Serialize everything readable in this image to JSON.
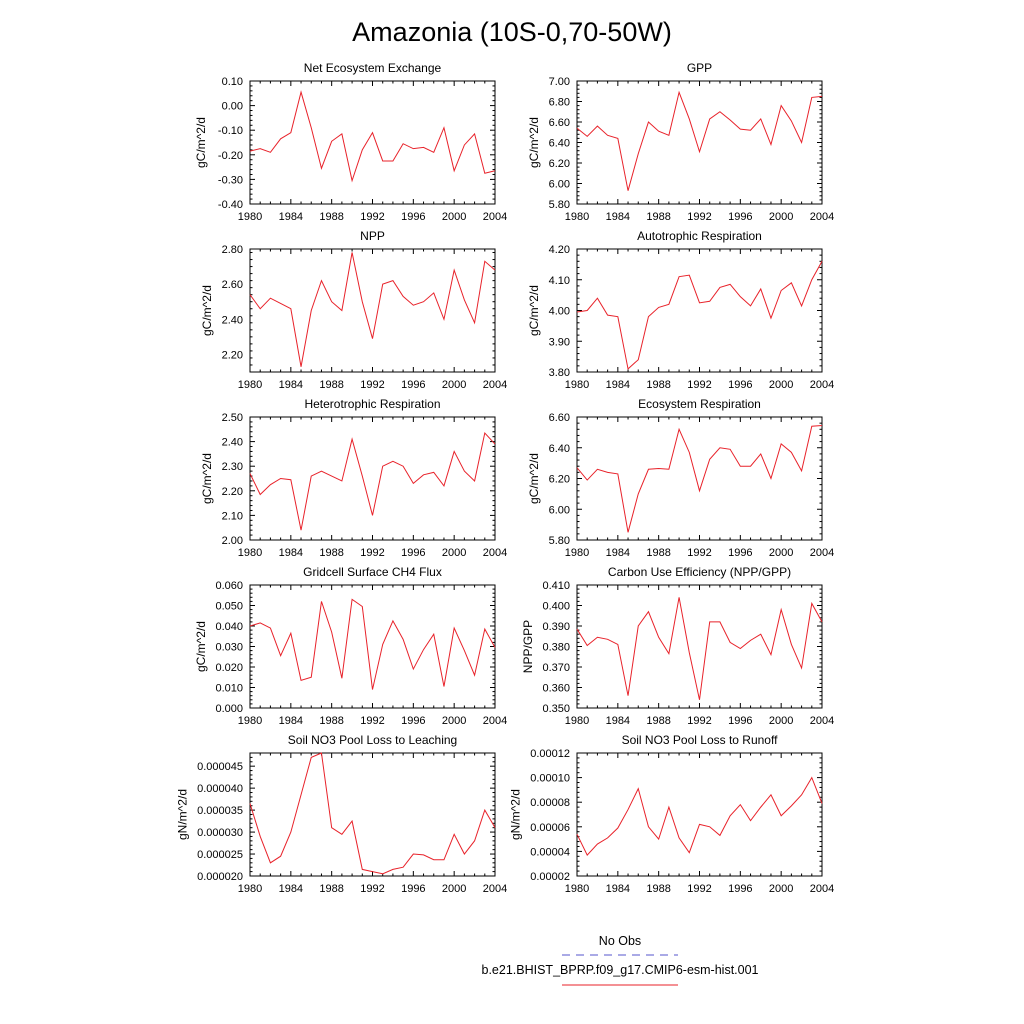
{
  "figure": {
    "title": "Amazonia (10S-0,70-50W)"
  },
  "legend": {
    "entries": [
      {
        "label": "No Obs",
        "color": "#5555cc",
        "dashed": true
      },
      {
        "label": "b.e21.BHIST_BPRP.f09_g17.CMIP6-esm-hist.001",
        "color": "#e8222a",
        "dashed": false
      }
    ]
  },
  "chart_data": [
    {
      "type": "line",
      "title": "Net Ecosystem Exchange",
      "ylabel": "gC/m^2/d",
      "xlim": [
        1980,
        2004
      ],
      "xticks": [
        "1980",
        "1984",
        "1988",
        "1992",
        "1996",
        "2000",
        "2004"
      ],
      "ylim": [
        -0.4,
        0.1
      ],
      "yticks": [
        "-0.40",
        "-0.30",
        "-0.20",
        "-0.10",
        "0.00",
        "0.10"
      ],
      "series": [
        {
          "color": "#e8222a",
          "x": [
            1980,
            1981,
            1982,
            1983,
            1984,
            1985,
            1986,
            1987,
            1988,
            1989,
            1990,
            1991,
            1992,
            1993,
            1994,
            1995,
            1996,
            1997,
            1998,
            1999,
            2000,
            2001,
            2002,
            2003,
            2004
          ],
          "values": [
            -0.185,
            -0.175,
            -0.19,
            -0.135,
            -0.11,
            0.055,
            -0.09,
            -0.255,
            -0.145,
            -0.115,
            -0.305,
            -0.18,
            -0.11,
            -0.225,
            -0.225,
            -0.155,
            -0.175,
            -0.17,
            -0.19,
            -0.09,
            -0.265,
            -0.16,
            -0.115,
            -0.275,
            -0.265
          ]
        }
      ]
    },
    {
      "type": "line",
      "title": "GPP",
      "ylabel": "gC/m^2/d",
      "xlim": [
        1980,
        2004
      ],
      "xticks": [
        "1980",
        "1984",
        "1988",
        "1992",
        "1996",
        "2000",
        "2004"
      ],
      "ylim": [
        5.8,
        7.0
      ],
      "yticks": [
        "5.80",
        "6.00",
        "6.20",
        "6.40",
        "6.60",
        "6.80",
        "7.00"
      ],
      "series": [
        {
          "color": "#e8222a",
          "x": [
            1980,
            1981,
            1982,
            1983,
            1984,
            1985,
            1986,
            1987,
            1988,
            1989,
            1990,
            1991,
            1992,
            1993,
            1994,
            1995,
            1996,
            1997,
            1998,
            1999,
            2000,
            2001,
            2002,
            2003,
            2004
          ],
          "values": [
            6.54,
            6.46,
            6.56,
            6.47,
            6.44,
            5.93,
            6.29,
            6.6,
            6.51,
            6.47,
            6.89,
            6.63,
            6.31,
            6.63,
            6.7,
            6.62,
            6.53,
            6.52,
            6.63,
            6.38,
            6.76,
            6.61,
            6.4,
            6.84,
            6.85
          ]
        }
      ]
    },
    {
      "type": "line",
      "title": "NPP",
      "ylabel": "gC/m^2/d",
      "xlim": [
        1980,
        2004
      ],
      "xticks": [
        "1980",
        "1984",
        "1988",
        "1992",
        "1996",
        "2000",
        "2004"
      ],
      "ylim": [
        2.1,
        2.8
      ],
      "yticks": [
        "2.20",
        "2.40",
        "2.60",
        "2.80"
      ],
      "series": [
        {
          "color": "#e8222a",
          "x": [
            1980,
            1981,
            1982,
            1983,
            1984,
            1985,
            1986,
            1987,
            1988,
            1989,
            1990,
            1991,
            1992,
            1993,
            1994,
            1995,
            1996,
            1997,
            1998,
            1999,
            2000,
            2001,
            2002,
            2003,
            2004
          ],
          "values": [
            2.54,
            2.46,
            2.52,
            2.49,
            2.46,
            2.13,
            2.45,
            2.62,
            2.5,
            2.45,
            2.78,
            2.5,
            2.29,
            2.6,
            2.62,
            2.53,
            2.48,
            2.5,
            2.55,
            2.4,
            2.68,
            2.51,
            2.38,
            2.73,
            2.68
          ]
        }
      ]
    },
    {
      "type": "line",
      "title": "Autotrophic Respiration",
      "ylabel": "gC/m^2/d",
      "xlim": [
        1980,
        2004
      ],
      "xticks": [
        "1980",
        "1984",
        "1988",
        "1992",
        "1996",
        "2000",
        "2004"
      ],
      "ylim": [
        3.8,
        4.2
      ],
      "yticks": [
        "3.80",
        "3.90",
        "4.00",
        "4.10",
        "4.20"
      ],
      "series": [
        {
          "color": "#e8222a",
          "x": [
            1980,
            1981,
            1982,
            1983,
            1984,
            1985,
            1986,
            1987,
            1988,
            1989,
            1990,
            1991,
            1992,
            1993,
            1994,
            1995,
            1996,
            1997,
            1998,
            1999,
            2000,
            2001,
            2002,
            2003,
            2004
          ],
          "values": [
            3.995,
            4.0,
            4.04,
            3.985,
            3.98,
            3.81,
            3.84,
            3.98,
            4.01,
            4.02,
            4.11,
            4.115,
            4.025,
            4.03,
            4.075,
            4.085,
            4.045,
            4.015,
            4.07,
            3.975,
            4.065,
            4.09,
            4.015,
            4.1,
            4.16
          ]
        }
      ]
    },
    {
      "type": "line",
      "title": "Heterotrophic Respiration",
      "ylabel": "gC/m^2/d",
      "xlim": [
        1980,
        2004
      ],
      "xticks": [
        "1980",
        "1984",
        "1988",
        "1992",
        "1996",
        "2000",
        "2004"
      ],
      "ylim": [
        2.0,
        2.5
      ],
      "yticks": [
        "2.00",
        "2.10",
        "2.20",
        "2.30",
        "2.40",
        "2.50"
      ],
      "series": [
        {
          "color": "#e8222a",
          "x": [
            1980,
            1981,
            1982,
            1983,
            1984,
            1985,
            1986,
            1987,
            1988,
            1989,
            1990,
            1991,
            1992,
            1993,
            1994,
            1995,
            1996,
            1997,
            1998,
            1999,
            2000,
            2001,
            2002,
            2003,
            2004
          ],
          "values": [
            2.27,
            2.185,
            2.225,
            2.25,
            2.245,
            2.04,
            2.26,
            2.28,
            2.26,
            2.24,
            2.41,
            2.26,
            2.1,
            2.3,
            2.32,
            2.3,
            2.23,
            2.265,
            2.275,
            2.22,
            2.36,
            2.28,
            2.24,
            2.435,
            2.39
          ]
        }
      ]
    },
    {
      "type": "line",
      "title": "Ecosystem Respiration",
      "ylabel": "gC/m^2/d",
      "xlim": [
        1980,
        2004
      ],
      "xticks": [
        "1980",
        "1984",
        "1988",
        "1992",
        "1996",
        "2000",
        "2004"
      ],
      "ylim": [
        5.8,
        6.6
      ],
      "yticks": [
        "5.80",
        "6.00",
        "6.20",
        "6.40",
        "6.60"
      ],
      "series": [
        {
          "color": "#e8222a",
          "x": [
            1980,
            1981,
            1982,
            1983,
            1984,
            1985,
            1986,
            1987,
            1988,
            1989,
            1990,
            1991,
            1992,
            1993,
            1994,
            1995,
            1996,
            1997,
            1998,
            1999,
            2000,
            2001,
            2002,
            2003,
            2004
          ],
          "values": [
            6.27,
            6.19,
            6.26,
            6.24,
            6.23,
            5.85,
            6.1,
            6.26,
            6.265,
            6.26,
            6.52,
            6.37,
            6.12,
            6.325,
            6.4,
            6.39,
            6.28,
            6.28,
            6.36,
            6.2,
            6.425,
            6.37,
            6.25,
            6.54,
            6.545
          ]
        }
      ]
    },
    {
      "type": "line",
      "title": "Gridcell Surface CH4 Flux",
      "ylabel": "gC/m^2/d",
      "xlim": [
        1980,
        2004
      ],
      "xticks": [
        "1980",
        "1984",
        "1988",
        "1992",
        "1996",
        "2000",
        "2004"
      ],
      "ylim": [
        0.0,
        0.06
      ],
      "yticks": [
        "0.000",
        "0.010",
        "0.020",
        "0.030",
        "0.040",
        "0.050",
        "0.060"
      ],
      "series": [
        {
          "color": "#e8222a",
          "x": [
            1980,
            1981,
            1982,
            1983,
            1984,
            1985,
            1986,
            1987,
            1988,
            1989,
            1990,
            1991,
            1992,
            1993,
            1994,
            1995,
            1996,
            1997,
            1998,
            1999,
            2000,
            2001,
            2002,
            2003,
            2004
          ],
          "values": [
            0.04,
            0.0415,
            0.039,
            0.0255,
            0.0365,
            0.0135,
            0.015,
            0.052,
            0.037,
            0.0145,
            0.053,
            0.0495,
            0.009,
            0.031,
            0.0425,
            0.0335,
            0.019,
            0.0285,
            0.036,
            0.0105,
            0.039,
            0.028,
            0.016,
            0.0385,
            0.0295
          ]
        }
      ]
    },
    {
      "type": "line",
      "title": "Carbon Use Efficiency (NPP/GPP)",
      "ylabel": "NPP/GPP",
      "xlim": [
        1980,
        2004
      ],
      "xticks": [
        "1980",
        "1984",
        "1988",
        "1992",
        "1996",
        "2000",
        "2004"
      ],
      "ylim": [
        0.35,
        0.41
      ],
      "yticks": [
        "0.350",
        "0.360",
        "0.370",
        "0.380",
        "0.390",
        "0.400",
        "0.410"
      ],
      "series": [
        {
          "color": "#e8222a",
          "x": [
            1980,
            1981,
            1982,
            1983,
            1984,
            1985,
            1986,
            1987,
            1988,
            1989,
            1990,
            1991,
            1992,
            1993,
            1994,
            1995,
            1996,
            1997,
            1998,
            1999,
            2000,
            2001,
            2002,
            2003,
            2004
          ],
          "values": [
            0.3885,
            0.3805,
            0.3845,
            0.3835,
            0.381,
            0.356,
            0.39,
            0.397,
            0.3845,
            0.3765,
            0.404,
            0.377,
            0.354,
            0.392,
            0.392,
            0.382,
            0.379,
            0.383,
            0.386,
            0.376,
            0.398,
            0.381,
            0.3695,
            0.401,
            0.392
          ]
        }
      ]
    },
    {
      "type": "line",
      "title": "Soil NO3 Pool Loss to Leaching",
      "ylabel": "gN/m^2/d",
      "xlim": [
        1980,
        2004
      ],
      "xticks": [
        "1980",
        "1984",
        "1988",
        "1992",
        "1996",
        "2000",
        "2004"
      ],
      "ylim": [
        2e-05,
        4.8e-05
      ],
      "yticks": [
        "0.000020",
        "0.000025",
        "0.000030",
        "0.000035",
        "0.000040",
        "0.000045"
      ],
      "series": [
        {
          "color": "#e8222a",
          "x": [
            1980,
            1981,
            1982,
            1983,
            1984,
            1985,
            1986,
            1987,
            1988,
            1989,
            1990,
            1991,
            1992,
            1993,
            1994,
            1995,
            1996,
            1997,
            1998,
            1999,
            2000,
            2001,
            2002,
            2003,
            2004
          ],
          "values": [
            3.65e-05,
            2.9e-05,
            2.3e-05,
            2.45e-05,
            3e-05,
            3.85e-05,
            4.7e-05,
            4.8e-05,
            3.1e-05,
            2.95e-05,
            3.25e-05,
            2.15e-05,
            2.1e-05,
            2.05e-05,
            2.15e-05,
            2.2e-05,
            2.5e-05,
            2.48e-05,
            2.37e-05,
            2.37e-05,
            2.95e-05,
            2.5e-05,
            2.8e-05,
            3.5e-05,
            3.1e-05
          ]
        }
      ]
    },
    {
      "type": "line",
      "title": "Soil NO3 Pool Loss to Runoff",
      "ylabel": "gN/m^2/d",
      "xlim": [
        1980,
        2004
      ],
      "xticks": [
        "1980",
        "1984",
        "1988",
        "1992",
        "1996",
        "2000",
        "2004"
      ],
      "ylim": [
        2e-05,
        0.00012
      ],
      "yticks": [
        "0.00002",
        "0.00004",
        "0.00006",
        "0.00008",
        "0.00010",
        "0.00012"
      ],
      "series": [
        {
          "color": "#e8222a",
          "x": [
            1980,
            1981,
            1982,
            1983,
            1984,
            1985,
            1986,
            1987,
            1988,
            1989,
            1990,
            1991,
            1992,
            1993,
            1994,
            1995,
            1996,
            1997,
            1998,
            1999,
            2000,
            2001,
            2002,
            2003,
            2004
          ],
          "values": [
            5.4e-05,
            3.7e-05,
            4.6e-05,
            5.1e-05,
            5.9e-05,
            7.4e-05,
            9.1e-05,
            6e-05,
            5e-05,
            7.6e-05,
            5.1e-05,
            3.9e-05,
            6.2e-05,
            6e-05,
            5.3e-05,
            6.9e-05,
            7.8e-05,
            6.5e-05,
            7.6e-05,
            8.6e-05,
            6.9e-05,
            7.7e-05,
            8.6e-05,
            0.0001,
            7.9e-05
          ]
        }
      ]
    }
  ]
}
